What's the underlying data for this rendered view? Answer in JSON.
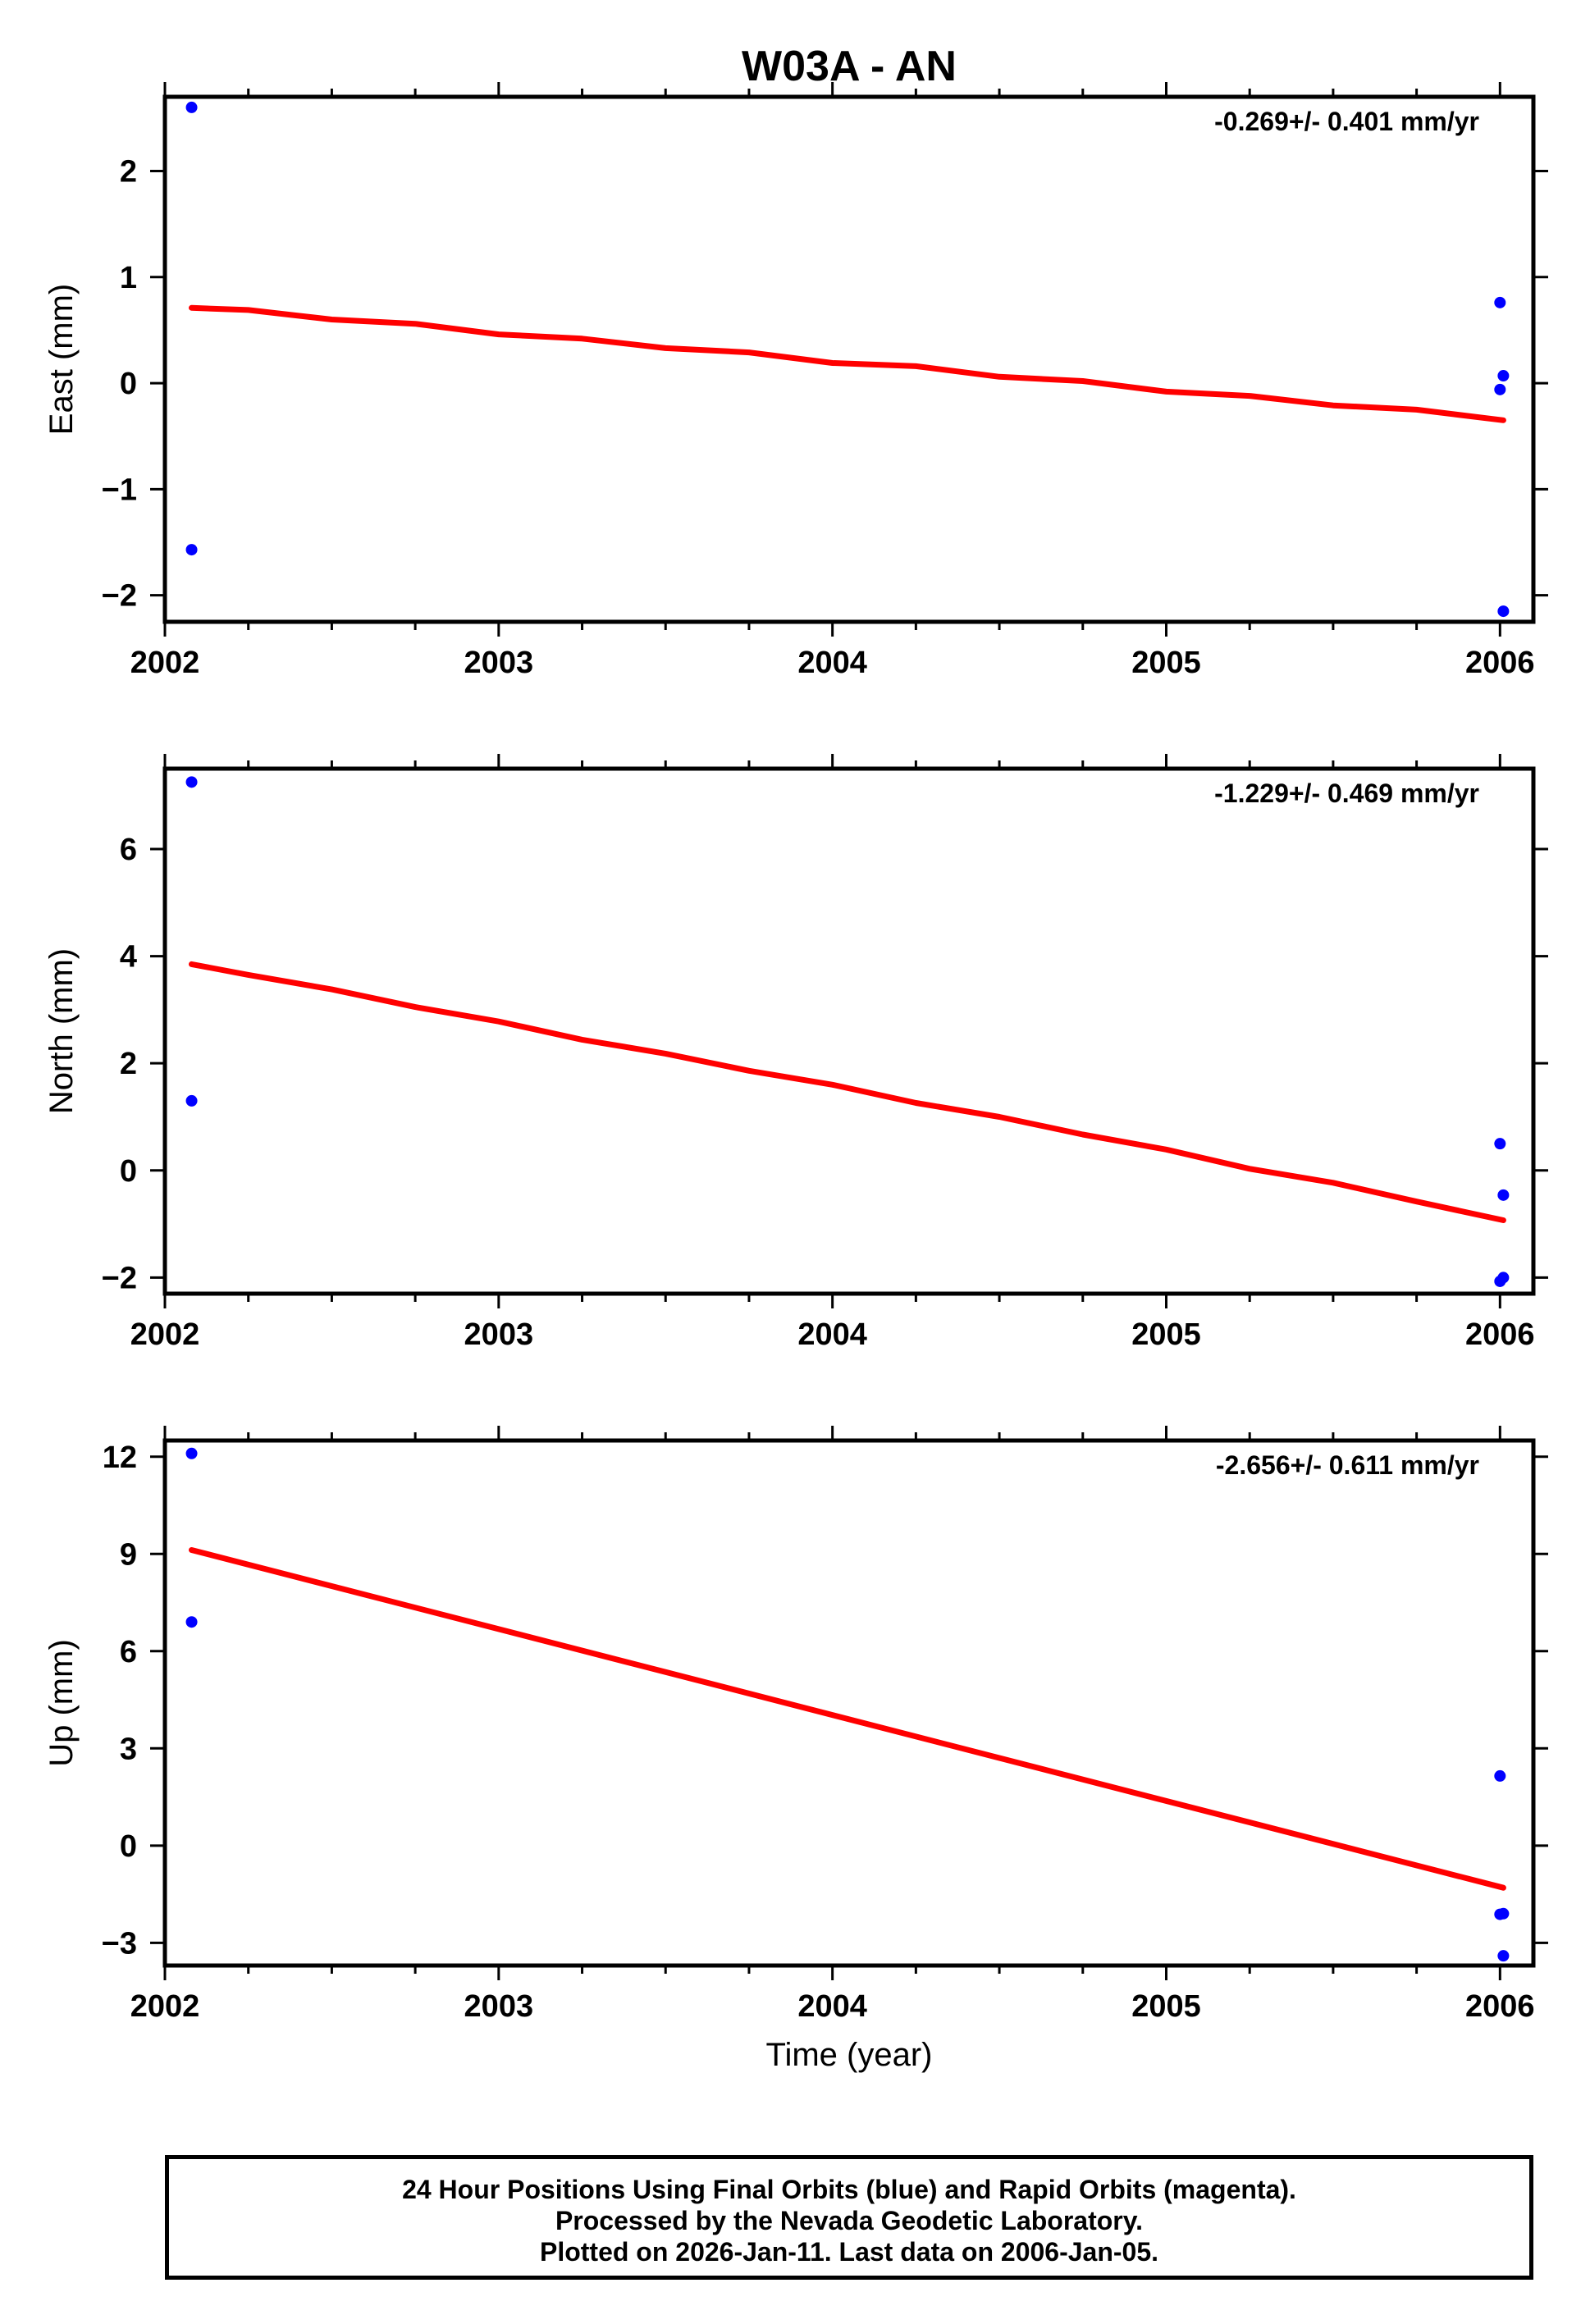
{
  "title": "W03A - AN",
  "xlabel": "Time (year)",
  "footer": {
    "line1": "24 Hour Positions Using Final Orbits (blue) and Rapid Orbits (magenta).",
    "line2": "Processed by the Nevada Geodetic Laboratory.",
    "line3": "Plotted on 2026-Jan-11. Last data on 2006-Jan-05."
  },
  "colors": {
    "data": "#0000ff",
    "fit": "#ff0000",
    "frame": "#000000"
  },
  "chart_data": [
    {
      "type": "scatter",
      "ylabel": "East (mm)",
      "rate_label": "-0.269+/- 0.401 mm/yr",
      "xlim": [
        2002.0,
        2006.1
      ],
      "ylim": [
        -2.25,
        2.7
      ],
      "xticks": [
        2002,
        2003,
        2004,
        2005,
        2006
      ],
      "yticks": [
        -2,
        -1,
        0,
        1,
        2
      ],
      "yticklabels": [
        "−2",
        "−1",
        "0",
        "1",
        "2"
      ],
      "points": [
        {
          "x": 2002.08,
          "y": 2.6
        },
        {
          "x": 2002.08,
          "y": -1.57
        },
        {
          "x": 2006.0,
          "y": 0.76
        },
        {
          "x": 2006.01,
          "y": 0.07
        },
        {
          "x": 2006.0,
          "y": -0.06
        },
        {
          "x": 2006.01,
          "y": -2.15
        }
      ],
      "fit": [
        {
          "x": 2002.08,
          "y": 0.71
        },
        {
          "x": 2002.25,
          "y": 0.69
        },
        {
          "x": 2002.5,
          "y": 0.6
        },
        {
          "x": 2002.75,
          "y": 0.56
        },
        {
          "x": 2003.0,
          "y": 0.46
        },
        {
          "x": 2003.25,
          "y": 0.42
        },
        {
          "x": 2003.5,
          "y": 0.33
        },
        {
          "x": 2003.75,
          "y": 0.29
        },
        {
          "x": 2004.0,
          "y": 0.19
        },
        {
          "x": 2004.25,
          "y": 0.16
        },
        {
          "x": 2004.5,
          "y": 0.06
        },
        {
          "x": 2004.75,
          "y": 0.02
        },
        {
          "x": 2005.0,
          "y": -0.08
        },
        {
          "x": 2005.25,
          "y": -0.12
        },
        {
          "x": 2005.5,
          "y": -0.21
        },
        {
          "x": 2005.75,
          "y": -0.25
        },
        {
          "x": 2006.01,
          "y": -0.35
        }
      ]
    },
    {
      "type": "scatter",
      "ylabel": "North (mm)",
      "rate_label": "-1.229+/- 0.469 mm/yr",
      "xlim": [
        2002.0,
        2006.1
      ],
      "ylim": [
        -2.3,
        7.5
      ],
      "xticks": [
        2002,
        2003,
        2004,
        2005,
        2006
      ],
      "yticks": [
        -2,
        0,
        2,
        4,
        6
      ],
      "yticklabels": [
        "−2",
        "0",
        "2",
        "4",
        "6"
      ],
      "points": [
        {
          "x": 2002.08,
          "y": 7.25
        },
        {
          "x": 2002.08,
          "y": 1.3
        },
        {
          "x": 2006.0,
          "y": 0.5
        },
        {
          "x": 2006.01,
          "y": -0.46
        },
        {
          "x": 2006.01,
          "y": -2.0
        },
        {
          "x": 2006.0,
          "y": -2.07
        }
      ],
      "fit": [
        {
          "x": 2002.08,
          "y": 3.85
        },
        {
          "x": 2002.25,
          "y": 3.65
        },
        {
          "x": 2002.5,
          "y": 3.38
        },
        {
          "x": 2002.75,
          "y": 3.05
        },
        {
          "x": 2003.0,
          "y": 2.78
        },
        {
          "x": 2003.25,
          "y": 2.44
        },
        {
          "x": 2003.5,
          "y": 2.18
        },
        {
          "x": 2003.75,
          "y": 1.86
        },
        {
          "x": 2004.0,
          "y": 1.6
        },
        {
          "x": 2004.25,
          "y": 1.26
        },
        {
          "x": 2004.5,
          "y": 1.0
        },
        {
          "x": 2004.75,
          "y": 0.67
        },
        {
          "x": 2005.0,
          "y": 0.39
        },
        {
          "x": 2005.25,
          "y": 0.03
        },
        {
          "x": 2005.5,
          "y": -0.23
        },
        {
          "x": 2005.75,
          "y": -0.58
        },
        {
          "x": 2006.01,
          "y": -0.93
        }
      ]
    },
    {
      "type": "scatter",
      "ylabel": "Up (mm)",
      "rate_label": "-2.656+/- 0.611 mm/yr",
      "xlim": [
        2002.0,
        2006.1
      ],
      "ylim": [
        -3.7,
        12.5
      ],
      "xticks": [
        2002,
        2003,
        2004,
        2005,
        2006
      ],
      "yticks": [
        -3,
        0,
        3,
        6,
        9,
        12
      ],
      "yticklabels": [
        "−3",
        "0",
        "3",
        "6",
        "9",
        "12"
      ],
      "points": [
        {
          "x": 2002.08,
          "y": 12.1
        },
        {
          "x": 2002.08,
          "y": 6.9
        },
        {
          "x": 2006.0,
          "y": 2.15
        },
        {
          "x": 2006.01,
          "y": -2.1
        },
        {
          "x": 2006.0,
          "y": -2.12
        },
        {
          "x": 2006.01,
          "y": -3.4
        }
      ],
      "fit": [
        {
          "x": 2002.08,
          "y": 9.12
        },
        {
          "x": 2006.01,
          "y": -1.3
        }
      ]
    }
  ]
}
